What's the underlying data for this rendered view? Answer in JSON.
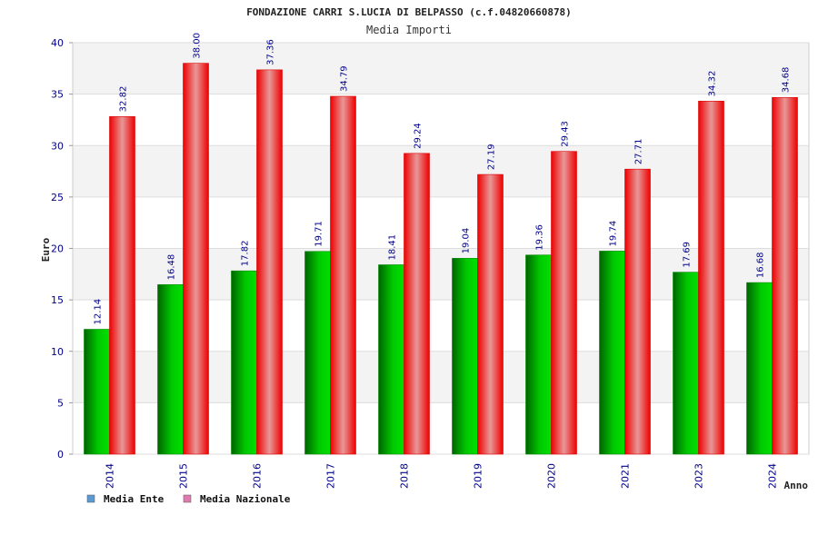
{
  "chart_data": {
    "type": "bar",
    "title": "FONDAZIONE CARRI S.LUCIA DI BELPASSO (c.f.04820660878)",
    "subtitle": "Media Importi",
    "xlabel": "Anno",
    "ylabel": "Euro",
    "ylim": [
      0,
      40
    ],
    "yticks": [
      "0",
      "5",
      "10",
      "15",
      "20",
      "25",
      "30",
      "35",
      "40"
    ],
    "categories": [
      "2014",
      "2015",
      "2016",
      "2017",
      "2018",
      "2019",
      "2020",
      "2021",
      "2023",
      "2024"
    ],
    "series": [
      {
        "name": "Media Ente",
        "color": "#00a000",
        "values": [
          12.14,
          16.48,
          17.82,
          19.71,
          18.41,
          19.04,
          19.36,
          19.74,
          17.69,
          16.68
        ],
        "labels": [
          "12.14",
          "16.48",
          "17.82",
          "19.71",
          "18.41",
          "19.04",
          "19.36",
          "19.74",
          "17.69",
          "16.68"
        ]
      },
      {
        "name": "Media Nazionale",
        "color": "#ee1111",
        "values": [
          32.82,
          38.0,
          37.36,
          34.79,
          29.24,
          27.19,
          29.43,
          27.71,
          34.32,
          34.68
        ],
        "labels": [
          "32.82",
          "38.00",
          "37.36",
          "34.79",
          "29.24",
          "27.19",
          "29.43",
          "27.71",
          "34.32",
          "34.68"
        ]
      }
    ],
    "legend": {
      "placement": "bottom-left",
      "items": [
        {
          "label": "Media Ente",
          "color": "#5b9bd5"
        },
        {
          "label": "Media Nazionale",
          "color": "#e07bb0"
        }
      ]
    },
    "grid": true
  }
}
